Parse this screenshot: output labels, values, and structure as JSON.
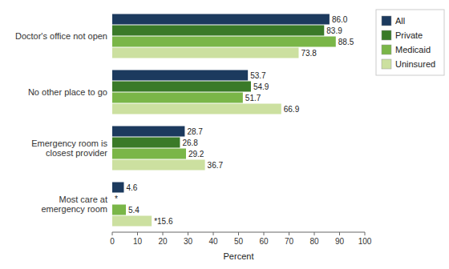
{
  "chart_data": {
    "type": "bar",
    "orientation": "horizontal",
    "categories": [
      "Doctor's office not open",
      "No other place to go",
      "Emergency room is\nclosest provider",
      "Most care at\nemergency room"
    ],
    "series": [
      {
        "name": "All",
        "color": "#1c3a5e",
        "values": [
          86.0,
          53.7,
          28.7,
          4.6
        ],
        "value_labels": [
          "86.0",
          "53.7",
          "28.7",
          "4.6"
        ]
      },
      {
        "name": "Private",
        "color": "#3a7a28",
        "values": [
          83.9,
          54.9,
          26.8,
          null
        ],
        "value_labels": [
          "83.9",
          "54.9",
          "26.8",
          "*"
        ]
      },
      {
        "name": "Medicaid",
        "color": "#7ab648",
        "values": [
          88.5,
          51.7,
          29.2,
          5.4
        ],
        "value_labels": [
          "88.5",
          "51.7",
          "29.2",
          "5.4"
        ]
      },
      {
        "name": "Uninsured",
        "color": "#cce0a0",
        "values": [
          73.8,
          66.9,
          36.7,
          15.6
        ],
        "value_labels": [
          "73.8",
          "66.9",
          "36.7",
          "*15.6"
        ]
      }
    ],
    "xlabel": "Percent",
    "xlim": [
      0,
      100
    ],
    "xticks": [
      0,
      10,
      20,
      30,
      40,
      50,
      60,
      70,
      80,
      90,
      100
    ],
    "data_labels": true,
    "grid": false,
    "legend": "right"
  }
}
